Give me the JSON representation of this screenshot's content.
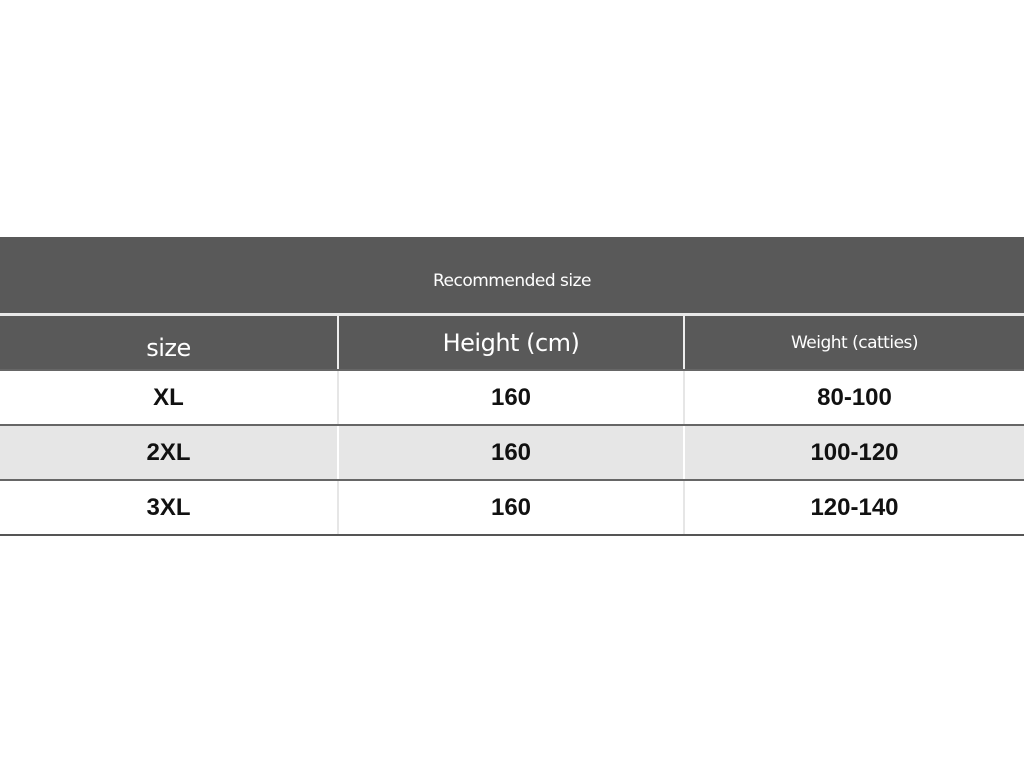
{
  "table": {
    "title": "Recommended size",
    "headers": [
      "size",
      "Height (cm)",
      "Weight (catties)"
    ],
    "rows": [
      [
        "XL",
        "160",
        "80-100"
      ],
      [
        "2XL",
        "160",
        "100-120"
      ],
      [
        "3XL",
        "160",
        "120-140"
      ]
    ]
  },
  "colors": {
    "header_bg": "#595959",
    "alt_row_bg": "#e6e6e6"
  }
}
